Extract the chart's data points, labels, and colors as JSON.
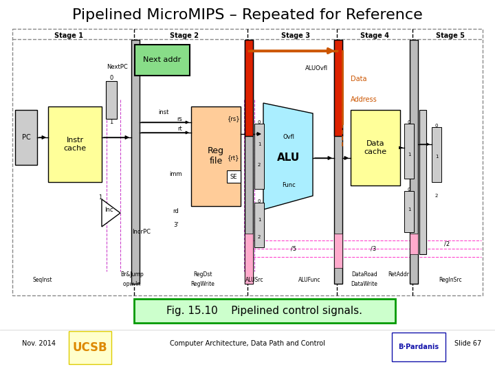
{
  "title": "Pipelined MicroMIPS – Repeated for Reference",
  "fig_caption": "Fig. 15.10    Pipelined control signals.",
  "footer_left": "Nov. 2014",
  "footer_center": "Computer Architecture, Data Path and Control",
  "footer_right": "Slide 67",
  "bg_color": "#ffffff",
  "stage_labels": [
    "Stage 1",
    "Stage 2",
    "Stage 3",
    "Stage 4",
    "Stage 5"
  ],
  "caption_bg": "#ccffcc",
  "caption_border": "#009900"
}
